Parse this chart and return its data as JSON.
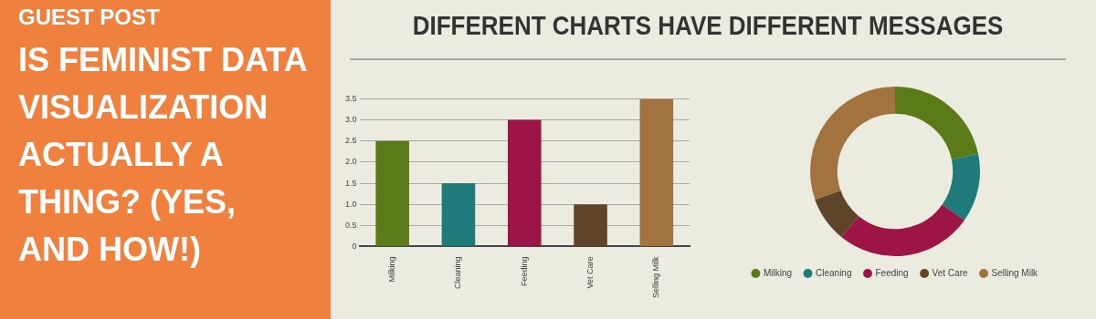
{
  "chart_data": [
    {
      "type": "other",
      "title": "GUEST POST",
      "subtitle": "IS FEMINIST DATA VISUALIZATION ACTUALLY A THING? (YES, AND HOW!)"
    },
    {
      "type": "bar",
      "title": "DIFFERENT CHARTS HAVE DIFFERENT MESSAGES",
      "categories": [
        "Milking",
        "Cleaning",
        "Feeding",
        "Vet Care",
        "Selling Milk"
      ],
      "values": [
        2.5,
        1.5,
        3.0,
        1.0,
        3.5
      ],
      "colors": [
        "#5b7a18",
        "#1e7b79",
        "#9c1546",
        "#5e4529",
        "#a2733f"
      ],
      "ylim": [
        0,
        3.5
      ],
      "yticks": [
        0,
        {
          "value": 0.5,
          "label": "0.5"
        },
        {
          "value": 1,
          "label": "1.0"
        },
        {
          "value": 1.5,
          "label": "1.5"
        },
        {
          "value": 2,
          "label": "2.0"
        },
        {
          "value": 2.5,
          "label": "2.5"
        },
        {
          "value": 3,
          "label": "3.0"
        },
        {
          "value": 3.5,
          "label": "3.5"
        }
      ],
      "grid": "y"
    },
    {
      "type": "donut",
      "categories": [
        "Milking",
        "Cleaning",
        "Feeding",
        "Vet Care",
        "Selling Milk"
      ],
      "values": [
        21.7,
        13.1,
        26.1,
        8.7,
        30.4
      ],
      "colors": [
        "#5b7a18",
        "#1e7b79",
        "#9c1546",
        "#5e4529",
        "#a2733f"
      ],
      "legend": "bottom"
    }
  ]
}
